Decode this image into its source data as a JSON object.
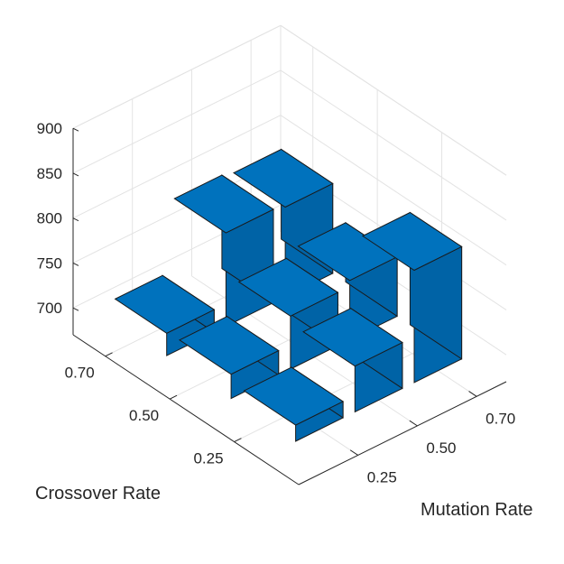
{
  "chart_data": {
    "type": "bar3",
    "xlabel": "Mutation Rate",
    "ylabel": "Crossover Rate",
    "zlabel": "",
    "x_categories": [
      "0.25",
      "0.50",
      "0.70"
    ],
    "y_categories": [
      "0.25",
      "0.50",
      "0.70"
    ],
    "z_ticks": [
      "700",
      "750",
      "800",
      "850",
      "900"
    ],
    "zlim": [
      670,
      900
    ],
    "grid": true,
    "bar_color": "#0072BD",
    "bars": [
      {
        "mutation": "0.25",
        "crossover": "0.25",
        "value": 688
      },
      {
        "mutation": "0.50",
        "crossover": "0.25",
        "value": 721
      },
      {
        "mutation": "0.70",
        "crossover": "0.25",
        "value": 795
      },
      {
        "mutation": "0.25",
        "crossover": "0.50",
        "value": 697
      },
      {
        "mutation": "0.50",
        "crossover": "0.50",
        "value": 729
      },
      {
        "mutation": "0.70",
        "crossover": "0.50",
        "value": 736
      },
      {
        "mutation": "0.25",
        "crossover": "0.70",
        "value": 695
      },
      {
        "mutation": "0.50",
        "crossover": "0.70",
        "value": 774
      },
      {
        "mutation": "0.70",
        "crossover": "0.70",
        "value": 770
      }
    ]
  }
}
